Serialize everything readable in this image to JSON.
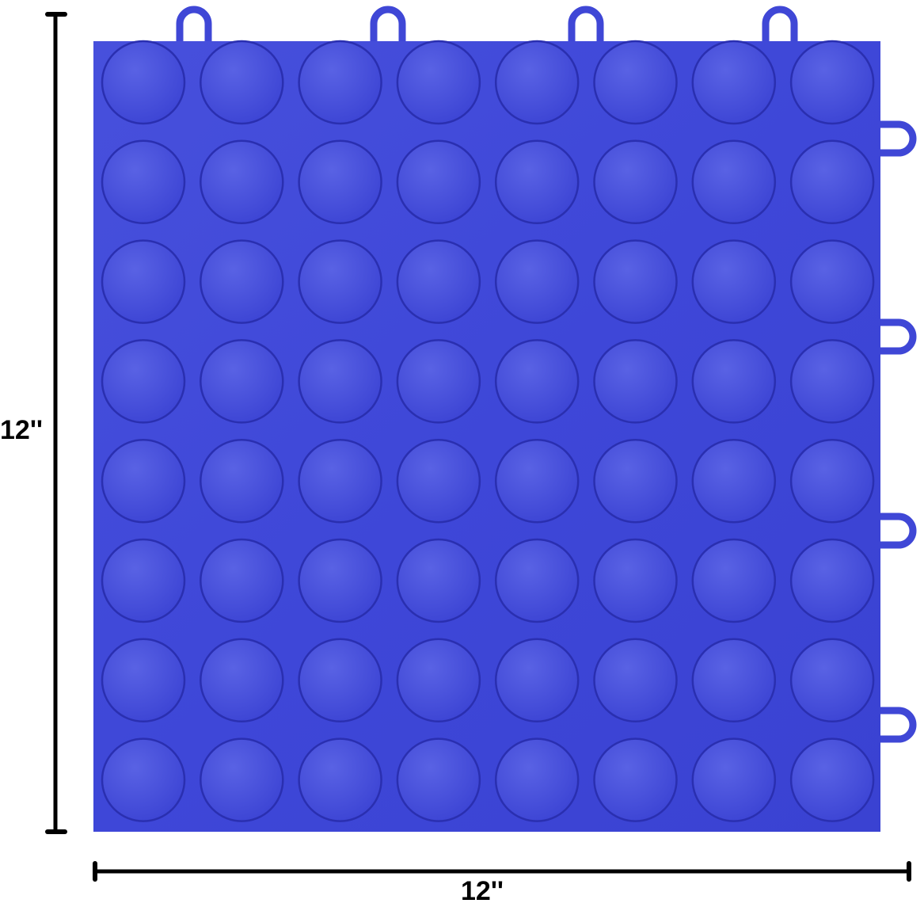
{
  "product": {
    "name_hint": "",
    "colors": {
      "tile": "#3f47d6",
      "tile_light": "#5a63e6",
      "tile_dark": "#2a2fb0",
      "dimension_line": "#000000"
    },
    "grid": {
      "rows": 8,
      "cols": 8
    },
    "top_loops": 4,
    "right_loops": 4
  },
  "dimensions": {
    "height_label": "12''",
    "width_label": "12''"
  }
}
